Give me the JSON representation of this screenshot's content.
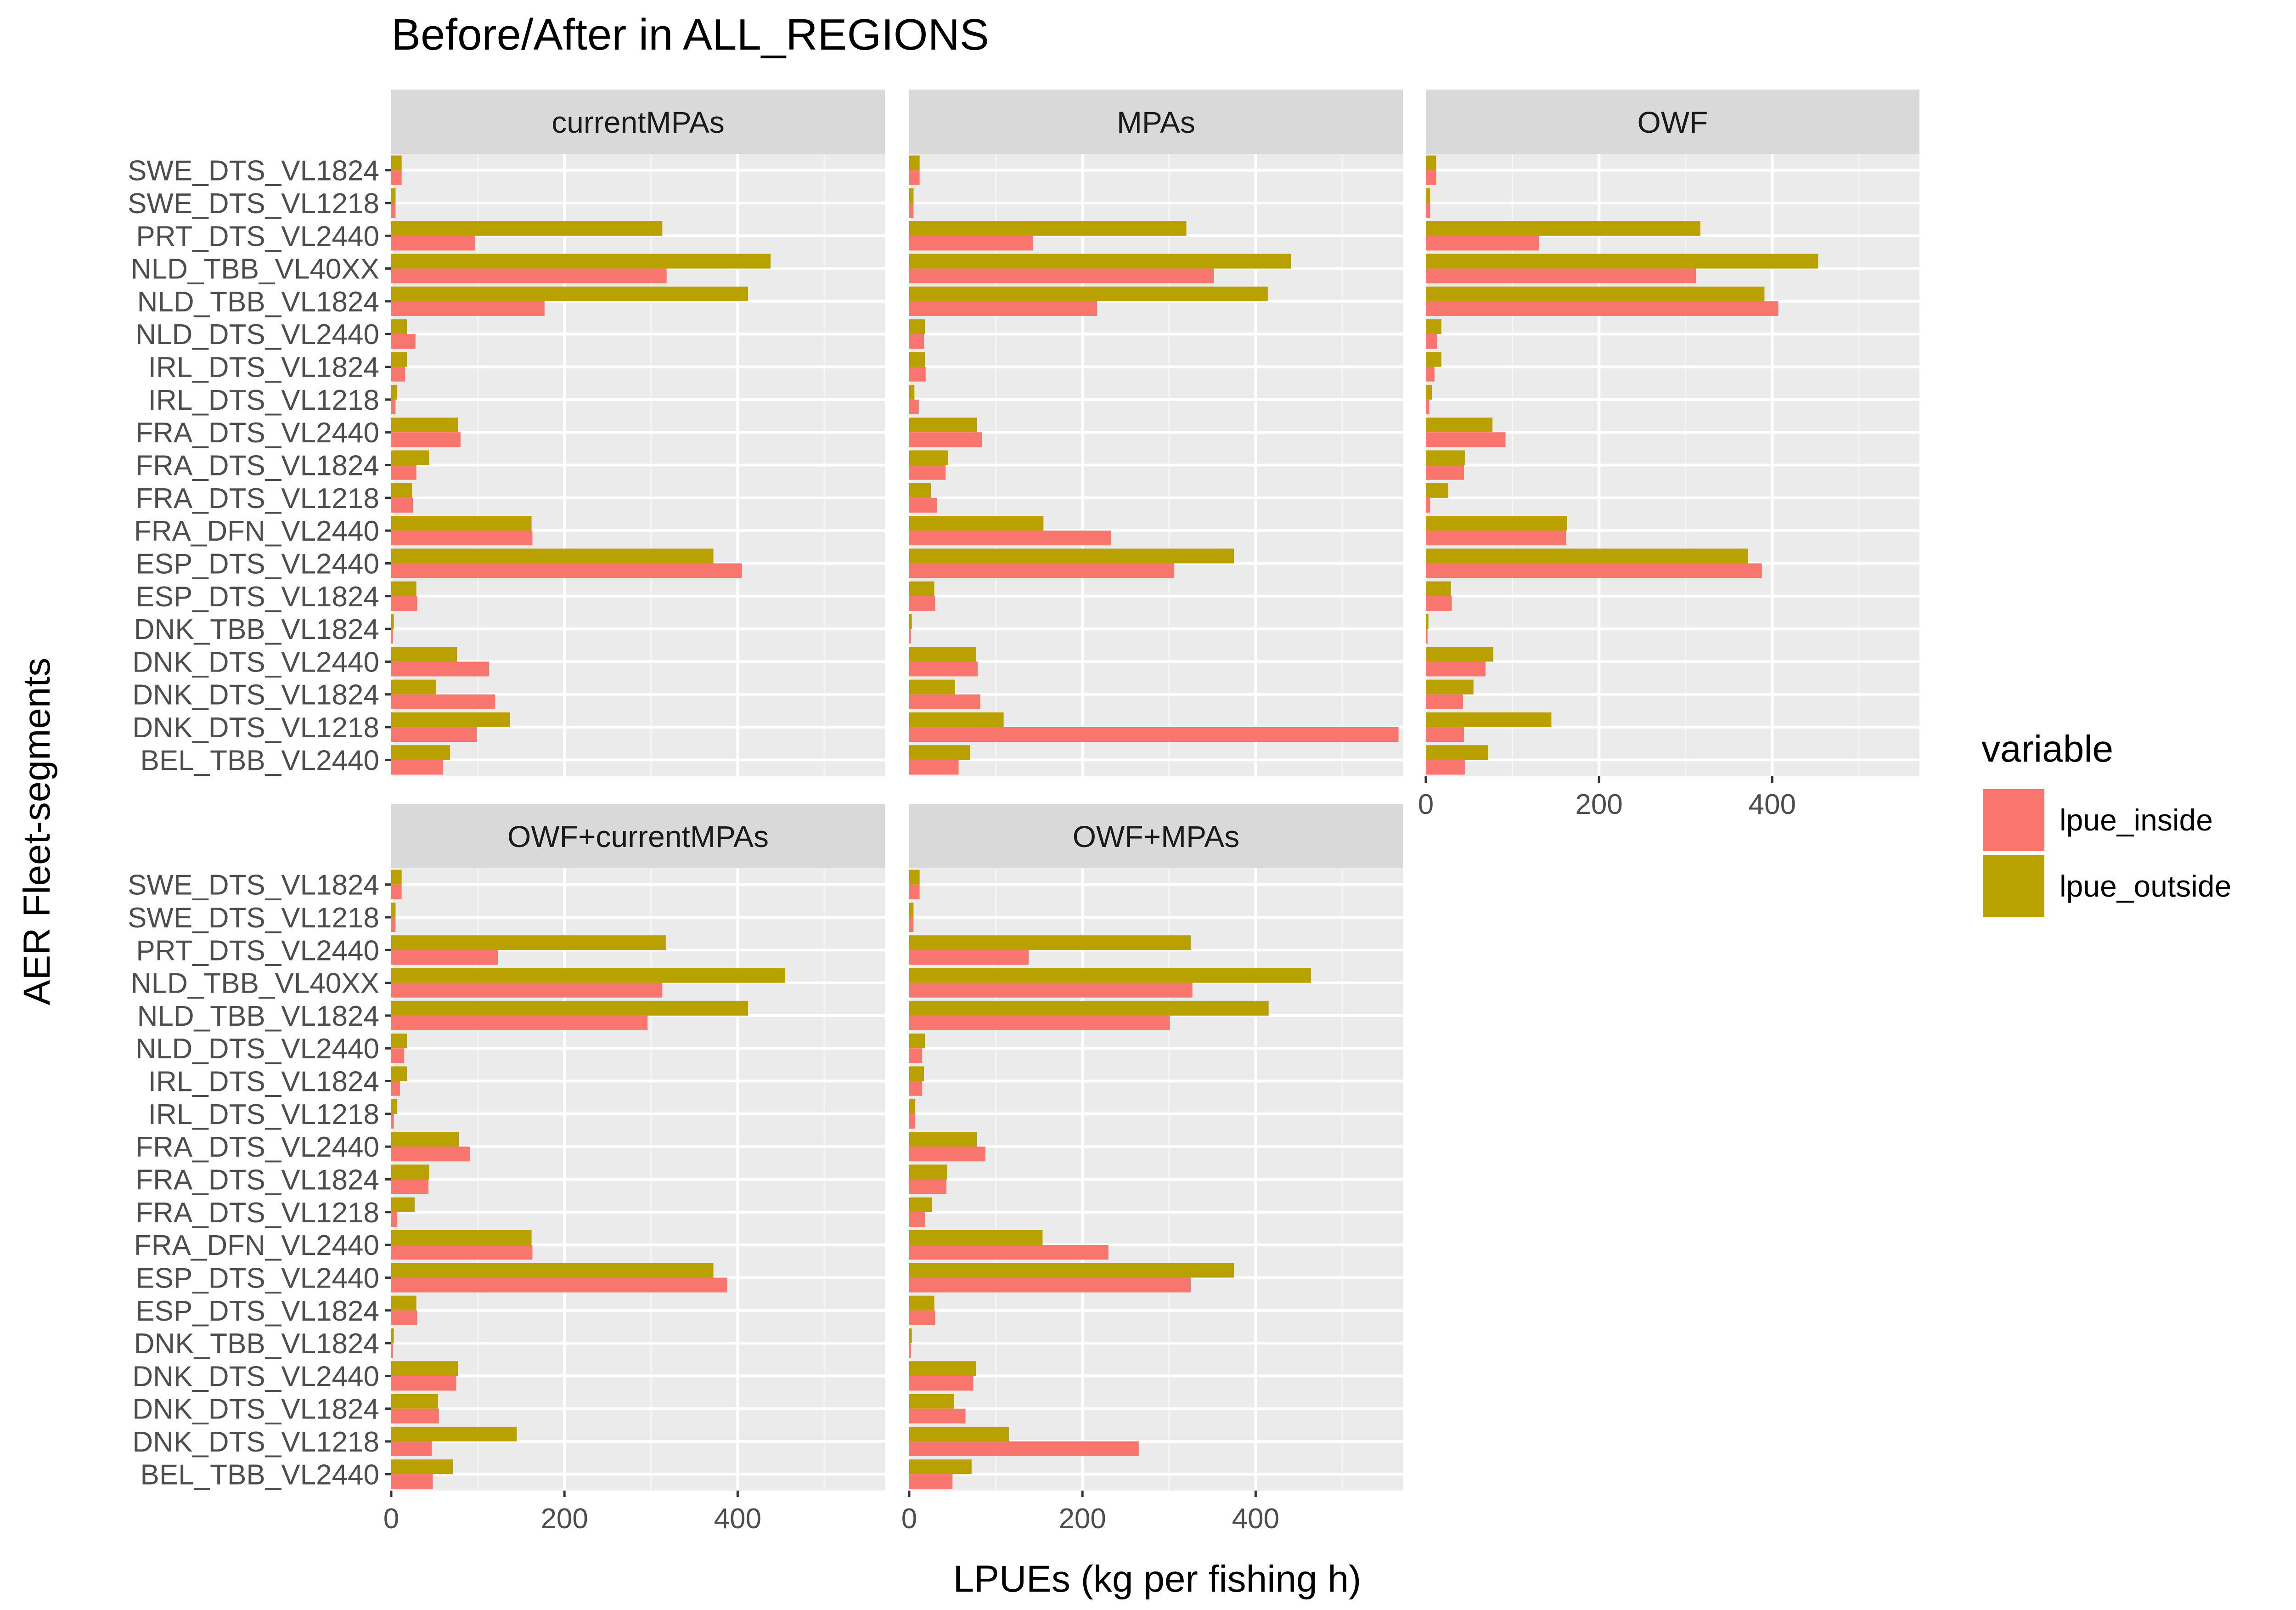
{
  "chart_data": {
    "type": "bar",
    "orientation": "horizontal",
    "title": "Before/After in ALL_REGIONS",
    "xlabel": "LPUEs (kg per fishing h)",
    "ylabel": "AER Fleet-segments",
    "xlim": [
      0,
      570
    ],
    "x_ticks": [
      "0",
      "200",
      "400"
    ],
    "grid": true,
    "legend_position": "right",
    "legend_title": "variable",
    "colors": {
      "lpue_inside": "#F8766D",
      "lpue_outside": "#B8A100",
      "panel_bg": "#EBEBEB",
      "strip_bg": "#D9D9D9"
    },
    "categories": [
      "SWE_DTS_VL1824",
      "SWE_DTS_VL1218",
      "PRT_DTS_VL2440",
      "NLD_TBB_VL40XX",
      "NLD_TBB_VL1824",
      "NLD_DTS_VL2440",
      "IRL_DTS_VL1824",
      "IRL_DTS_VL1218",
      "FRA_DTS_VL2440",
      "FRA_DTS_VL1824",
      "FRA_DTS_VL1218",
      "FRA_DFN_VL2440",
      "ESP_DTS_VL2440",
      "ESP_DTS_VL1824",
      "DNK_TBB_VL1824",
      "DNK_DTS_VL2440",
      "DNK_DTS_VL1824",
      "DNK_DTS_VL1218",
      "BEL_TBB_VL2440"
    ],
    "series_names": [
      "lpue_inside",
      "lpue_outside"
    ],
    "panels": [
      {
        "title": "currentMPAs",
        "series": [
          {
            "name": "lpue_inside",
            "values": [
              12,
              5,
              97,
              318,
              177,
              28,
              16,
              5,
              80,
              29,
              25,
              163,
              405,
              30,
              2,
              113,
              120,
              99,
              60
            ]
          },
          {
            "name": "lpue_outside",
            "values": [
              12,
              5,
              313,
              438,
              412,
              18,
              18,
              7,
              77,
              44,
              24,
              162,
              372,
              29,
              3,
              76,
              52,
              137,
              68
            ]
          }
        ]
      },
      {
        "title": "MPAs",
        "series": [
          {
            "name": "lpue_inside",
            "values": [
              12,
              5,
              143,
              352,
              217,
              17,
              19,
              11,
              84,
              42,
              32,
              233,
              306,
              30,
              2,
              79,
              82,
              565,
              57
            ]
          },
          {
            "name": "lpue_outside",
            "values": [
              12,
              5,
              320,
              441,
              414,
              18,
              18,
              6,
              78,
              45,
              25,
              155,
              375,
              29,
              3,
              77,
              53,
              109,
              70
            ]
          }
        ]
      },
      {
        "title": "OWF",
        "series": [
          {
            "name": "lpue_inside",
            "values": [
              12,
              5,
              131,
              312,
              407,
              13,
              10,
              4,
              92,
              44,
              5,
              162,
              388,
              30,
              2,
              69,
              43,
              44,
              45
            ]
          },
          {
            "name": "lpue_outside",
            "values": [
              12,
              5,
              317,
              453,
              391,
              18,
              18,
              7,
              77,
              45,
              26,
              163,
              372,
              29,
              3,
              78,
              55,
              145,
              72
            ]
          }
        ]
      },
      {
        "title": "OWF+currentMPAs",
        "series": [
          {
            "name": "lpue_inside",
            "values": [
              12,
              5,
              123,
              313,
              296,
              15,
              10,
              3,
              91,
              43,
              7,
              163,
              388,
              30,
              2,
              75,
              55,
              47,
              48
            ]
          },
          {
            "name": "lpue_outside",
            "values": [
              12,
              5,
              317,
              455,
              412,
              18,
              18,
              7,
              78,
              44,
              27,
              162,
              372,
              29,
              3,
              77,
              54,
              145,
              71
            ]
          }
        ]
      },
      {
        "title": "OWF+MPAs",
        "series": [
          {
            "name": "lpue_inside",
            "values": [
              12,
              5,
              138,
              327,
              301,
              15,
              15,
              7,
              88,
              43,
              18,
              230,
              325,
              30,
              2,
              74,
              65,
              265,
              50
            ]
          },
          {
            "name": "lpue_outside",
            "values": [
              12,
              5,
              325,
              464,
              415,
              18,
              17,
              7,
              78,
              44,
              26,
              154,
              375,
              29,
              3,
              77,
              52,
              115,
              72
            ]
          }
        ]
      }
    ]
  }
}
